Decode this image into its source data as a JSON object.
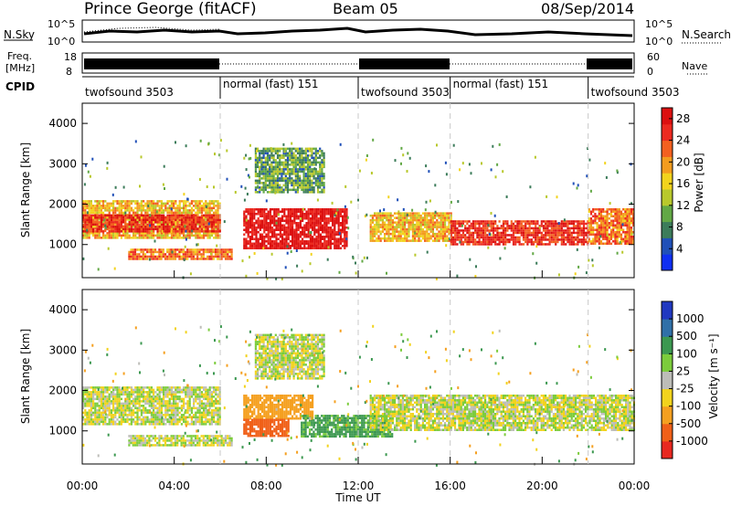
{
  "header": {
    "station": "Prince George (fitACF)",
    "beam": "Beam 05",
    "date": "08/Sep/2014"
  },
  "noise_panel": {
    "left_label": "N.Sky",
    "right_label": "N.Search",
    "ticks": [
      "10^5",
      "10^0"
    ]
  },
  "freq_panel": {
    "left_label_top": "Freq.",
    "left_label_unit": "[MHz]",
    "left_ticks": [
      "18",
      "8"
    ],
    "right_ticks": [
      "60",
      "0"
    ],
    "right_label": "Nave"
  },
  "cpid": {
    "label": "CPID",
    "segments": [
      {
        "text": "twofsound 3503",
        "row": "low"
      },
      {
        "text": "normal (fast) 151",
        "row": "high"
      },
      {
        "text": "twofsound 3503",
        "row": "low"
      },
      {
        "text": "normal (fast) 151",
        "row": "high"
      },
      {
        "text": "twofsound 3503",
        "row": "low"
      }
    ]
  },
  "power_colorbar": {
    "label": "Power [dB]",
    "ticks": [
      "4",
      "8",
      "12",
      "16",
      "20",
      "24",
      "28"
    ],
    "colors": [
      "#0f2ff2",
      "#2050b8",
      "#3c7c5a",
      "#62a845",
      "#b8c82c",
      "#f2d31d",
      "#f39c1e",
      "#f36020",
      "#ec2a20",
      "#dc1010"
    ]
  },
  "velocity_colorbar": {
    "label": "Velocity [m s⁻¹]",
    "ticks": [
      "1000",
      "500",
      "100",
      "25",
      "-25",
      "-100",
      "-500",
      "-1000"
    ],
    "colors": [
      "#2038c0",
      "#3070a8",
      "#3c9850",
      "#7ccc3c",
      "#bdbdb8",
      "#f2d31d",
      "#f5a020",
      "#f06018",
      "#e82820"
    ]
  },
  "common_axes": {
    "ylabel": "Slant Range [km]",
    "xlabel": "Time UT",
    "x_ticks": [
      "00:00",
      "04:00",
      "08:00",
      "12:00",
      "16:00",
      "20:00",
      "00:00"
    ],
    "y_ticks": [
      "1000",
      "2000",
      "3000",
      "4000"
    ]
  },
  "chart_data": {
    "type": "heatmap",
    "x_range_hours": [
      0,
      24
    ],
    "y_range_km": [
      180,
      4500
    ],
    "grid": false,
    "mode_switch_times_hours": [
      6,
      12,
      16,
      22
    ],
    "power_regions": [
      {
        "t0": 0.0,
        "t1": 6.0,
        "r0": 1150,
        "r1": 2100,
        "value_db": 18
      },
      {
        "t0": 0.0,
        "t1": 6.0,
        "r0": 1350,
        "r1": 1750,
        "value_db": 26
      },
      {
        "t0": 2.0,
        "t1": 6.5,
        "r0": 650,
        "r1": 900,
        "value_db": 22
      },
      {
        "t0": 7.0,
        "t1": 11.5,
        "r0": 900,
        "r1": 1900,
        "value_db": 29
      },
      {
        "t0": 7.5,
        "t1": 10.5,
        "r0": 2300,
        "r1": 3400,
        "value_db": 10
      },
      {
        "t0": 12.5,
        "t1": 16.0,
        "r0": 1100,
        "r1": 1800,
        "value_db": 18
      },
      {
        "t0": 16.0,
        "t1": 22.0,
        "r0": 1000,
        "r1": 1600,
        "value_db": 26
      },
      {
        "t0": 22.0,
        "t1": 24.0,
        "r0": 1000,
        "r1": 1900,
        "value_db": 22
      }
    ],
    "velocity_regions": [
      {
        "t0": 0.0,
        "t1": 6.0,
        "r0": 1150,
        "r1": 2100,
        "value_ms": 0
      },
      {
        "t0": 2.0,
        "t1": 6.5,
        "r0": 650,
        "r1": 900,
        "value_ms": 0
      },
      {
        "t0": 7.0,
        "t1": 10.0,
        "r0": 1300,
        "r1": 1900,
        "value_ms": -300
      },
      {
        "t0": 7.0,
        "t1": 9.0,
        "r0": 900,
        "r1": 1300,
        "value_ms": -600
      },
      {
        "t0": 9.5,
        "t1": 13.5,
        "r0": 850,
        "r1": 1400,
        "value_ms": 150
      },
      {
        "t0": 7.5,
        "t1": 10.5,
        "r0": 2300,
        "r1": 3400,
        "value_ms": 0
      },
      {
        "t0": 12.5,
        "t1": 24.0,
        "r0": 1000,
        "r1": 1900,
        "value_ms": 0
      }
    ]
  }
}
